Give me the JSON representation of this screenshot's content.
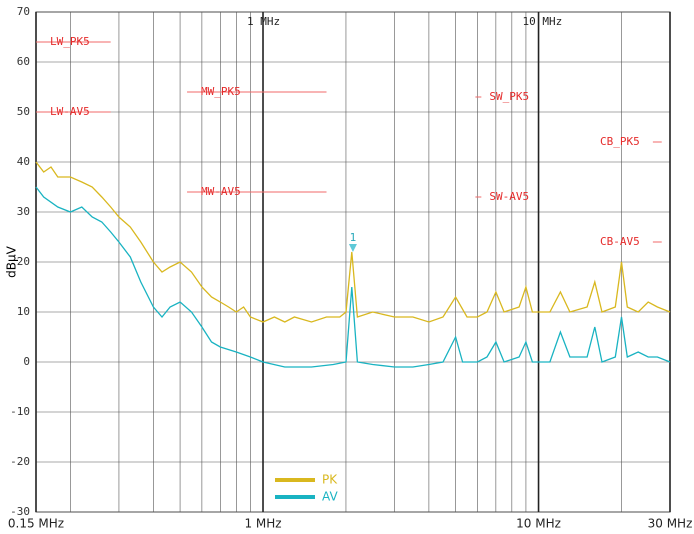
{
  "chart_data": {
    "type": "line",
    "y_label": "dBµV",
    "xscale": "log",
    "xlim": [
      0.15,
      30
    ],
    "ylim": [
      -30,
      70
    ],
    "yticks": [
      -30,
      -20,
      -10,
      0,
      10,
      20,
      30,
      40,
      50,
      60,
      70
    ],
    "xticks": [
      {
        "value": 0.15,
        "label": "0.15 MHz"
      },
      {
        "value": 1,
        "label": "1 MHz"
      },
      {
        "value": 10,
        "label": "10 MHz"
      },
      {
        "value": 30,
        "label": "30 MHz"
      }
    ],
    "xminor": [
      0.2,
      0.3,
      0.4,
      0.5,
      0.6,
      0.7,
      0.8,
      0.9,
      2,
      3,
      4,
      5,
      6,
      7,
      8,
      9,
      20
    ],
    "grid": true,
    "legend": "bottom",
    "series": [
      {
        "name": "PK",
        "color": "#d9b81f",
        "x": [
          0.15,
          0.16,
          0.17,
          0.18,
          0.2,
          0.22,
          0.24,
          0.26,
          0.28,
          0.3,
          0.33,
          0.36,
          0.4,
          0.43,
          0.46,
          0.5,
          0.55,
          0.6,
          0.65,
          0.7,
          0.75,
          0.8,
          0.85,
          0.9,
          1.0,
          1.1,
          1.2,
          1.3,
          1.5,
          1.7,
          1.9,
          2.0,
          2.1,
          2.2,
          2.5,
          3,
          3.5,
          4,
          4.5,
          5,
          5.5,
          6,
          6.5,
          7,
          7.5,
          8.5,
          9,
          9.5,
          11,
          12,
          13,
          15,
          16,
          17,
          19,
          20,
          21,
          23,
          25,
          27,
          30
        ],
        "values": [
          40,
          38,
          39,
          37,
          37,
          36,
          35,
          33,
          31,
          29,
          27,
          24,
          20,
          18,
          19,
          20,
          18,
          15,
          13,
          12,
          11,
          10,
          11,
          9,
          8,
          9,
          8,
          9,
          8,
          9,
          9,
          10,
          22,
          9,
          10,
          9,
          9,
          8,
          9,
          13,
          9,
          9,
          10,
          14,
          10,
          11,
          15,
          10,
          10,
          14,
          10,
          11,
          16,
          10,
          11,
          20,
          11,
          10,
          12,
          11,
          10
        ]
      },
      {
        "name": "AV",
        "color": "#19b3c2",
        "x": [
          0.15,
          0.16,
          0.18,
          0.2,
          0.22,
          0.24,
          0.26,
          0.28,
          0.3,
          0.33,
          0.36,
          0.4,
          0.43,
          0.46,
          0.5,
          0.55,
          0.6,
          0.65,
          0.7,
          0.8,
          0.9,
          1.0,
          1.2,
          1.5,
          1.8,
          2.0,
          2.1,
          2.2,
          2.5,
          3,
          3.5,
          4,
          4.5,
          5,
          5.3,
          6,
          6.5,
          7,
          7.5,
          8.5,
          9,
          9.5,
          11,
          12,
          13,
          15,
          16,
          17,
          19,
          20,
          21,
          23,
          25,
          27,
          30
        ],
        "values": [
          35,
          33,
          31,
          30,
          31,
          29,
          28,
          26,
          24,
          21,
          16,
          11,
          9,
          11,
          12,
          10,
          7,
          4,
          3,
          2,
          1,
          0,
          -1,
          -1,
          -0.5,
          0,
          15,
          0,
          -0.5,
          -1,
          -1,
          -0.5,
          0,
          5,
          0,
          0,
          1,
          4,
          0,
          1,
          4,
          0,
          0,
          6,
          1,
          1,
          7,
          0,
          1,
          9,
          1,
          2,
          1,
          1,
          0
        ]
      }
    ],
    "limits": [
      {
        "name": "LW_PK5",
        "value": 64,
        "x": [
          0.15,
          0.28
        ]
      },
      {
        "name": "LW-AV5",
        "value": 50,
        "x": [
          0.15,
          0.28
        ]
      },
      {
        "name": "MW_PK5",
        "value": 54,
        "x": [
          0.53,
          1.7
        ]
      },
      {
        "name": "MW-AV5",
        "value": 34,
        "x": [
          0.53,
          1.7
        ]
      },
      {
        "name": "SW_PK5",
        "value": 53,
        "x": [
          5.9,
          6.2
        ]
      },
      {
        "name": "SW-AV5",
        "value": 33,
        "x": [
          5.9,
          6.2
        ]
      },
      {
        "name": "CB_PK5",
        "value": 44,
        "x": [
          26,
          28
        ]
      },
      {
        "name": "CB-AV5",
        "value": 24,
        "x": [
          26,
          28
        ]
      }
    ],
    "marker": {
      "label": "1",
      "x": 2.12,
      "value": 22
    }
  }
}
